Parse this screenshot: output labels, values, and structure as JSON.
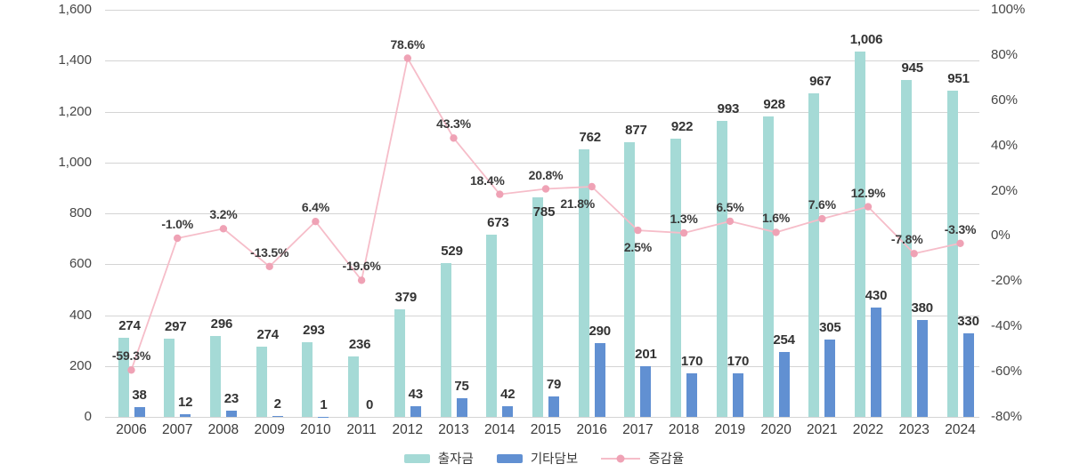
{
  "chart_data": {
    "type": "bar+line",
    "title": "",
    "categories": [
      "2006",
      "2007",
      "2008",
      "2009",
      "2010",
      "2011",
      "2012",
      "2013",
      "2014",
      "2015",
      "2016",
      "2017",
      "2018",
      "2019",
      "2020",
      "2021",
      "2022",
      "2023",
      "2024"
    ],
    "series": [
      {
        "name": "출자금",
        "type": "bar",
        "color": "#a5dad6",
        "values": [
          274,
          297,
          296,
          274,
          293,
          236,
          379,
          529,
          673,
          785,
          762,
          877,
          922,
          993,
          928,
          967,
          1006,
          945,
          951
        ],
        "labels": [
          "274",
          "297",
          "296",
          "274",
          "293",
          "236",
          "379",
          "529",
          "673",
          "785",
          "762",
          "877",
          "922",
          "993",
          "928",
          "967",
          "1,006",
          "945",
          "951"
        ]
      },
      {
        "name": "기타담보",
        "type": "bar",
        "color": "#6190d2",
        "values": [
          38,
          12,
          23,
          2,
          1,
          0,
          43,
          75,
          42,
          79,
          290,
          201,
          170,
          170,
          254,
          305,
          430,
          380,
          330
        ],
        "labels": [
          "38",
          "12",
          "23",
          "2",
          "1",
          "0",
          "43",
          "75",
          "42",
          "79",
          "290",
          "201",
          "170",
          "170",
          "254",
          "305",
          "430",
          "380",
          "330"
        ]
      },
      {
        "name": "증감율",
        "type": "line",
        "color": "#f6bdc9",
        "dot_color": "#efa2b5",
        "values_pct": [
          -59.3,
          -1.0,
          3.2,
          -13.5,
          6.4,
          -19.6,
          78.6,
          43.3,
          18.4,
          20.8,
          21.8,
          2.5,
          1.3,
          6.5,
          1.6,
          7.6,
          12.9,
          -7.8,
          -3.3
        ],
        "labels": [
          "-59.3%",
          "-1.0%",
          "3.2%",
          "-13.5%",
          "6.4%",
          "-19.6%",
          "78.6%",
          "43.3%",
          "18.4%",
          "20.8%",
          "21.8%",
          "2.5%",
          "1.3%",
          "6.5%",
          "1.6%",
          "7.6%",
          "12.9%",
          "-7.8%",
          "-3.3%"
        ]
      }
    ],
    "left_axis": {
      "min": 0,
      "max": 1600,
      "step": 200,
      "tick_labels": [
        "1,600",
        "1,400",
        "1,200",
        "1,000",
        "800",
        "600",
        "400",
        "200",
        "0"
      ]
    },
    "right_axis": {
      "min": -80,
      "max": 100,
      "step": 20,
      "tick_labels": [
        "100%",
        "80%",
        "60%",
        "40%",
        "20%",
        "0%",
        "-20%",
        "-40%",
        "-60%",
        "-80%"
      ]
    },
    "layout_hints": {
      "grid": "horizontal-only",
      "legend_position": "bottom-center",
      "axis_alignment": "left 0..1600 aligns with right -80%..100%",
      "bar_draw_note": "출자금 bar pixel height equals 출자금+기타담보 sum; label shows 출자금 only"
    }
  },
  "legend": {
    "items": [
      {
        "label": "출자금"
      },
      {
        "label": "기타담보"
      },
      {
        "label": "증감율"
      }
    ]
  }
}
